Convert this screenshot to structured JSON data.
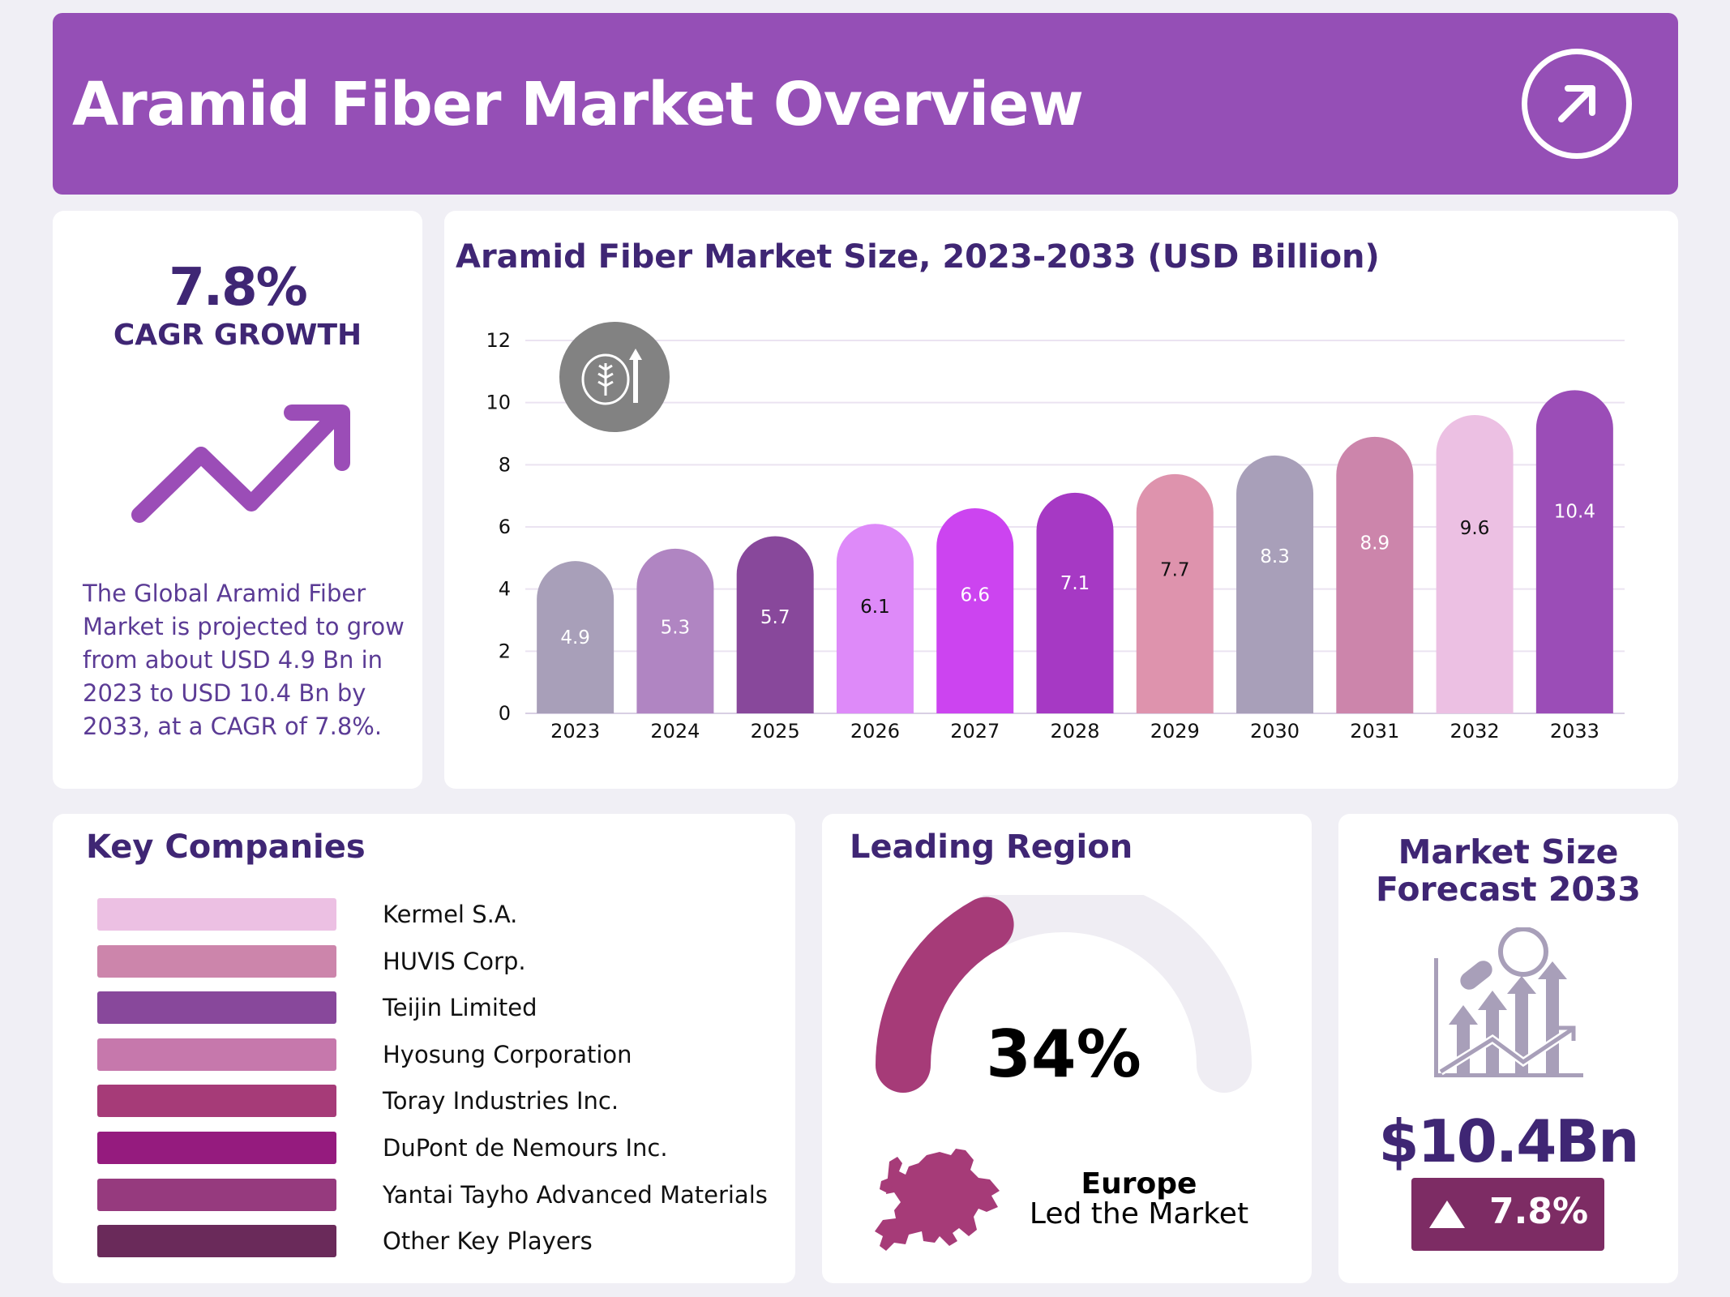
{
  "header": {
    "title": "Aramid Fiber Market Overview",
    "icon": "arrow-up-right-circle-icon",
    "color": "#954fb6"
  },
  "cagr": {
    "value": "7.8%",
    "label": "CAGR GROWTH",
    "icon": "trend-arrow-icon",
    "description": "The Global Aramid Fiber Market is projected to grow from about USD 4.9 Bn in 2023 to USD 10.4 Bn by 2033, at a CAGR of 7.8%."
  },
  "chart_data": {
    "type": "bar",
    "title": "Aramid Fiber Market Size, 2023-2033 (USD Billion)",
    "categories": [
      "2023",
      "2024",
      "2025",
      "2026",
      "2027",
      "2028",
      "2029",
      "2030",
      "2031",
      "2032",
      "2033"
    ],
    "values": [
      4.9,
      5.3,
      5.7,
      6.1,
      6.6,
      7.1,
      7.7,
      8.3,
      8.9,
      9.6,
      10.4
    ],
    "colors": [
      "#a89fb9",
      "#b085c2",
      "#88489b",
      "#de8af9",
      "#cc44f0",
      "#a639c4",
      "#de93ad",
      "#a89fb9",
      "#cc85ab",
      "#ecc0e3",
      "#9b4db7"
    ],
    "label_colors": [
      "#fff",
      "#fff",
      "#fff",
      "#111",
      "#fff",
      "#fff",
      "#111",
      "#fff",
      "#fff",
      "#111",
      "#fff"
    ],
    "ylim": [
      0,
      12
    ],
    "yticks": [
      "0",
      "2",
      "4",
      "6",
      "8",
      "10",
      "12"
    ],
    "grid": true,
    "icon": "wheat-growth-icon"
  },
  "companies": {
    "title": "Key Companies",
    "items": [
      {
        "name": "Kermel S.A.",
        "color": "#ecc0e3"
      },
      {
        "name": "HUVIS Corp.",
        "color": "#cc85ab"
      },
      {
        "name": "Teijin Limited",
        "color": "#88489b"
      },
      {
        "name": "Hyosung Corporation",
        "color": "#c678ac"
      },
      {
        "name": "Toray Industries Inc.",
        "color": "#a63b78"
      },
      {
        "name": "DuPont de Nemours Inc.",
        "color": "#951b7e"
      },
      {
        "name": "Yantai Tayho Advanced Materials",
        "color": "#963a7e"
      },
      {
        "name": "Other Key Players",
        "color": "#6a2a5a"
      }
    ]
  },
  "region": {
    "title": "Leading Region",
    "share": "34%",
    "share_value": 34,
    "region": "Europe",
    "subtitle": "Led the Market",
    "color": "#a63b78",
    "icon": "europe-map-icon"
  },
  "forecast": {
    "title_line1": "Market Size",
    "title_line2": "Forecast 2033",
    "value": "$10.4Bn",
    "growth": "7.8%",
    "icon": "chart-magnifier-icon",
    "badge_color": "#7d2c64"
  }
}
